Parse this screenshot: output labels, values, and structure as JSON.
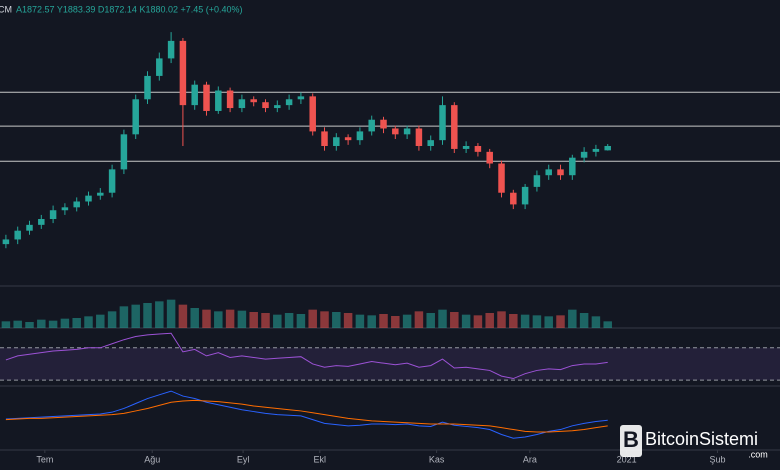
{
  "chart_data": {
    "type": "candlestick",
    "symbol": "CM",
    "header": "A1872.57 Y1883.39 D1872.14 K1880.02 +7.45 (+0.40%)",
    "watermark": "BitcoinSistemi",
    "watermark_sub": ".com",
    "up_color": "#26a69a",
    "down_color": "#ef5350",
    "xlim": [
      -0.5,
      65.6
    ],
    "xticks": [
      {
        "value": 3.3,
        "label": "Tem"
      },
      {
        "value": 12.4,
        "label": "Ağu"
      },
      {
        "value": 20.1,
        "label": "Eyl"
      },
      {
        "value": 26.6,
        "label": "Ekl"
      },
      {
        "value": 36.5,
        "label": "Kas"
      },
      {
        "value": 44.4,
        "label": "Ara"
      },
      {
        "value": 52.6,
        "label": "2021"
      },
      {
        "value": 60.3,
        "label": "Şub"
      }
    ],
    "ylim": [
      1642,
      2130
    ],
    "levels": [
      1972,
      1914,
      1854
    ],
    "open": [
      1712,
      1720,
      1735,
      1745,
      1755,
      1770,
      1775,
      1785,
      1795,
      1800,
      1840,
      1900,
      1960,
      2000,
      2030,
      2060,
      1950,
      1985,
      1940,
      1975,
      1945,
      1960,
      1955,
      1945,
      1950,
      1960,
      1965,
      1905,
      1880,
      1895,
      1890,
      1905,
      1925,
      1910,
      1900,
      1910,
      1880,
      1890,
      1950,
      1875,
      1880,
      1870,
      1850,
      1800,
      1780,
      1810,
      1830,
      1840,
      1830,
      1860,
      1870,
      1872.57
    ],
    "high": [
      1728,
      1742,
      1752,
      1762,
      1778,
      1782,
      1792,
      1802,
      1808,
      1848,
      1908,
      1968,
      2008,
      2040,
      2075,
      2065,
      1992,
      1990,
      1982,
      1980,
      1968,
      1965,
      1960,
      1958,
      1968,
      1972,
      1970,
      1912,
      1902,
      1900,
      1912,
      1932,
      1930,
      1915,
      1915,
      1915,
      1898,
      1965,
      1955,
      1888,
      1885,
      1875,
      1855,
      1805,
      1815,
      1838,
      1848,
      1848,
      1865,
      1878,
      1882,
      1883.39
    ],
    "low": [
      1705,
      1712,
      1728,
      1738,
      1748,
      1762,
      1768,
      1778,
      1788,
      1792,
      1832,
      1892,
      1952,
      1992,
      2022,
      1880,
      1942,
      1932,
      1935,
      1938,
      1938,
      1948,
      1938,
      1938,
      1942,
      1952,
      1898,
      1872,
      1872,
      1882,
      1882,
      1898,
      1902,
      1892,
      1892,
      1872,
      1872,
      1882,
      1868,
      1868,
      1862,
      1842,
      1792,
      1772,
      1772,
      1802,
      1822,
      1822,
      1822,
      1852,
      1862,
      1872.14
    ],
    "close": [
      1720,
      1735,
      1745,
      1755,
      1770,
      1775,
      1785,
      1795,
      1800,
      1840,
      1900,
      1960,
      2000,
      2030,
      2060,
      1950,
      1985,
      1940,
      1975,
      1945,
      1960,
      1955,
      1945,
      1950,
      1960,
      1965,
      1905,
      1880,
      1895,
      1890,
      1905,
      1925,
      1910,
      1900,
      1910,
      1880,
      1890,
      1950,
      1875,
      1880,
      1870,
      1850,
      1800,
      1780,
      1810,
      1830,
      1840,
      1830,
      1860,
      1870,
      1875,
      1880.02
    ],
    "volume": {
      "ylim": [
        0,
        120
      ],
      "values": [
        20,
        22,
        18,
        25,
        22,
        28,
        30,
        35,
        40,
        50,
        65,
        70,
        75,
        80,
        85,
        70,
        60,
        55,
        50,
        55,
        52,
        48,
        45,
        40,
        45,
        42,
        55,
        50,
        48,
        45,
        40,
        38,
        42,
        36,
        40,
        50,
        45,
        55,
        48,
        40,
        38,
        45,
        50,
        42,
        40,
        38,
        35,
        38,
        55,
        45,
        35,
        20
      ]
    },
    "rsi": {
      "ylim": [
        24,
        92
      ],
      "bands": [
        70,
        30
      ],
      "color": "#9c52d6",
      "values": [
        55,
        60,
        62,
        64,
        66,
        67,
        68,
        70,
        70,
        75,
        80,
        84,
        86,
        87,
        88,
        65,
        68,
        60,
        64,
        58,
        60,
        58,
        56,
        57,
        58,
        59,
        50,
        46,
        48,
        47,
        50,
        53,
        51,
        49,
        51,
        46,
        48,
        56,
        45,
        46,
        44,
        42,
        35,
        32,
        38,
        42,
        44,
        43,
        48,
        50,
        50,
        52
      ]
    },
    "macd": {
      "ylim": [
        -45,
        55
      ],
      "series": [
        {
          "color": "#2962ff",
          "values": [
            5,
            6,
            7,
            8,
            9,
            10,
            11,
            12,
            13,
            16,
            22,
            30,
            38,
            44,
            50,
            42,
            38,
            32,
            28,
            24,
            20,
            17,
            14,
            12,
            11,
            10,
            4,
            -2,
            -4,
            -6,
            -5,
            -3,
            -3,
            -4,
            -3,
            -6,
            -7,
            0,
            -5,
            -7,
            -9,
            -12,
            -20,
            -26,
            -24,
            -20,
            -15,
            -12,
            -6,
            -2,
            1,
            3
          ]
        },
        {
          "color": "#ff6d00",
          "values": [
            4,
            5,
            6,
            6,
            7,
            8,
            9,
            10,
            11,
            12,
            14,
            18,
            22,
            27,
            32,
            34,
            35,
            34,
            33,
            31,
            29,
            26,
            24,
            22,
            20,
            18,
            15,
            12,
            9,
            6,
            4,
            2,
            1,
            0,
            -1,
            -2,
            -3,
            -3,
            -3,
            -4,
            -5,
            -6,
            -9,
            -12,
            -15,
            -16,
            -16,
            -15,
            -14,
            -12,
            -9,
            -6
          ]
        }
      ]
    }
  }
}
